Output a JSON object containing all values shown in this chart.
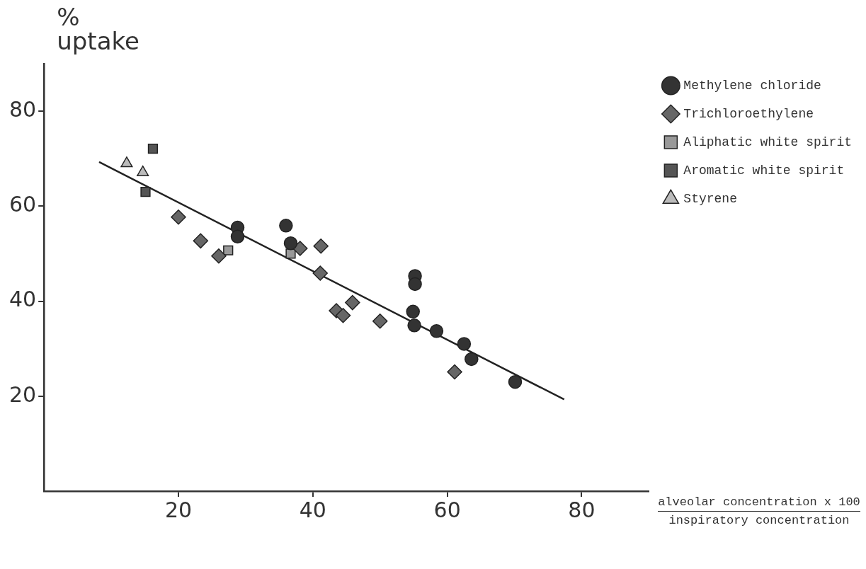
{
  "chart_data": {
    "type": "scatter",
    "ylabel": "% uptake",
    "xlabel": "alveolar concentration x 100\ninspiratory concentration",
    "xlim": [
      0,
      90
    ],
    "ylim": [
      0,
      90
    ],
    "xticks": [
      20,
      40,
      60,
      80
    ],
    "yticks": [
      20,
      40,
      60,
      80
    ],
    "grid": false,
    "legend": "top right",
    "series": [
      {
        "name": "Methylene chloride",
        "color": "#333333",
        "marker": "circle",
        "x": [
          28.8,
          28.8,
          36.0,
          36.7,
          55.2,
          55.2,
          54.9,
          55.1,
          58.4,
          62.5,
          63.6,
          70.1
        ],
        "values": [
          55.5,
          53.6,
          55.9,
          52.2,
          45.3,
          43.6,
          37.8,
          34.9,
          33.7,
          31.0,
          27.8,
          23.0
        ]
      },
      {
        "name": "Trichloroethylene",
        "color": "#666666",
        "marker": "diamond",
        "x": [
          20.0,
          23.3,
          26.0,
          38.1,
          41.2,
          41.1,
          43.5,
          44.5,
          45.9,
          50.0,
          61.1
        ],
        "values": [
          57.7,
          52.7,
          49.5,
          51.1,
          51.6,
          45.9,
          38.0,
          37.0,
          39.7,
          35.8,
          25.1
        ]
      },
      {
        "name": "Aliphatic white spirit",
        "color": "#999999",
        "marker": "square",
        "x": [
          27.4,
          36.7
        ],
        "values": [
          50.7,
          50.0
        ]
      },
      {
        "name": "Aromatic white spirit",
        "color": "#555555",
        "marker": "square",
        "x": [
          16.2,
          15.1
        ],
        "values": [
          72.1,
          63.0
        ]
      },
      {
        "name": "Styrene",
        "color": "#bbbbbb",
        "marker": "triangle",
        "x": [
          12.3,
          14.7
        ],
        "values": [
          69.0,
          67.1
        ]
      },
      {
        "type": "line",
        "color": "#222222",
        "marker": "none",
        "x": [
          8.2,
          77.4
        ],
        "values": [
          69.3,
          19.3
        ]
      }
    ]
  }
}
